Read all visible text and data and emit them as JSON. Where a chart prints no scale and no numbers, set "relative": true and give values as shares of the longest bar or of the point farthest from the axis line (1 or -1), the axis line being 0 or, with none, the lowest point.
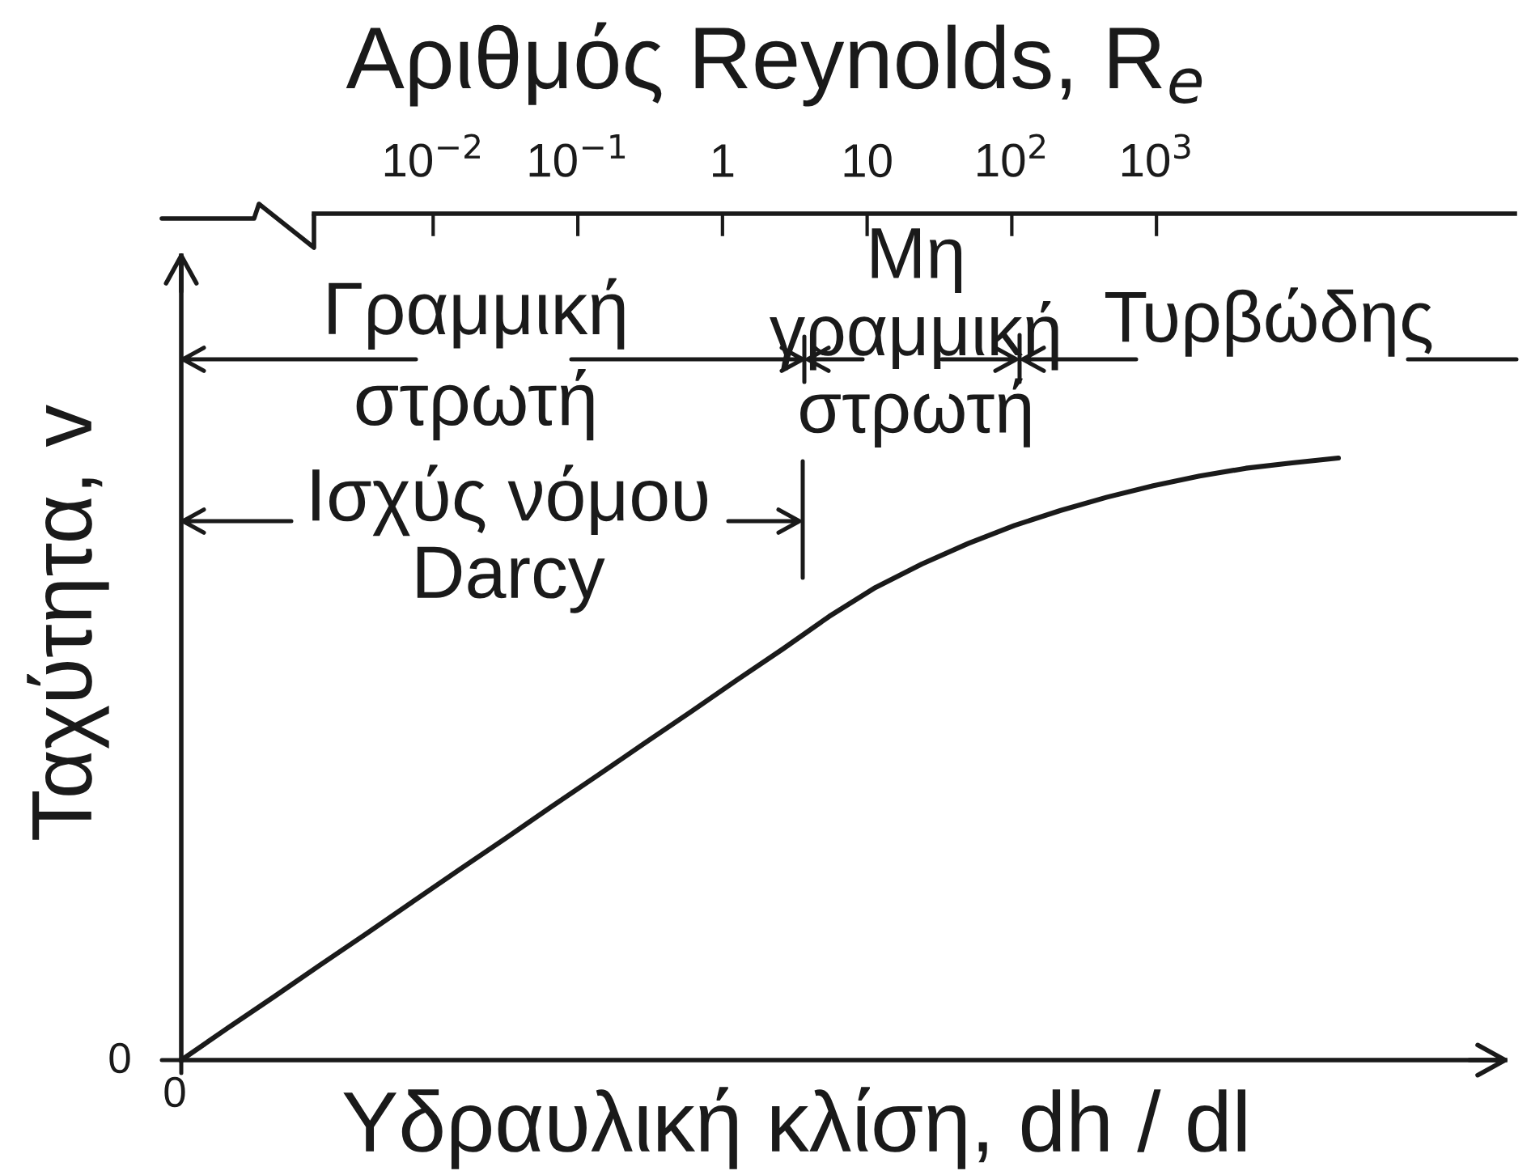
{
  "chart_data": {
    "type": "line",
    "relative": true,
    "xlabel": "Υδραυλική κλίση, dh / dl",
    "ylabel": "Ταχύτητα, v",
    "x2label": "Αριθμός Reynolds, R$_{e}$",
    "log": "x2",
    "x2lim": [
      0.0015,
      300000
    ],
    "x2ticks": [
      {
        "value": 0.01,
        "label": "10$^{−2}$"
      },
      {
        "value": 0.1,
        "label": "10$^{−1}$"
      },
      {
        "value": 1,
        "label": "1"
      },
      {
        "value": 10,
        "label": "10"
      },
      {
        "value": 100,
        "label": "10$^{2}$"
      },
      {
        "value": 1000,
        "label": "10$^{3}$"
      }
    ],
    "categories": [
      null,
      null,
      null,
      null,
      null,
      null,
      null,
      null,
      null,
      null,
      null,
      null,
      null,
      null,
      null,
      null,
      null,
      null,
      null,
      null,
      null,
      null,
      null,
      null,
      null,
      null
    ],
    "series": [
      {
        "color": "#1a1a1a",
        "values": [
          0,
          0.053,
          0.105,
          0.158,
          0.21,
          0.263,
          0.316,
          0.368,
          0.421,
          0.473,
          0.526,
          0.578,
          0.631,
          0.683,
          0.737,
          0.785,
          0.824,
          0.858,
          0.888,
          0.913,
          0.935,
          0.954,
          0.97,
          0.983,
          0.992,
          1
        ]
      }
    ],
    "annotations": [
      "0",
      "0",
      "Γραμμική\nστρωτή",
      "Μη\nγραμμική\nστρωτή",
      "Τυρβώδης",
      "Ισχύς νόμου\nDarcy"
    ]
  }
}
